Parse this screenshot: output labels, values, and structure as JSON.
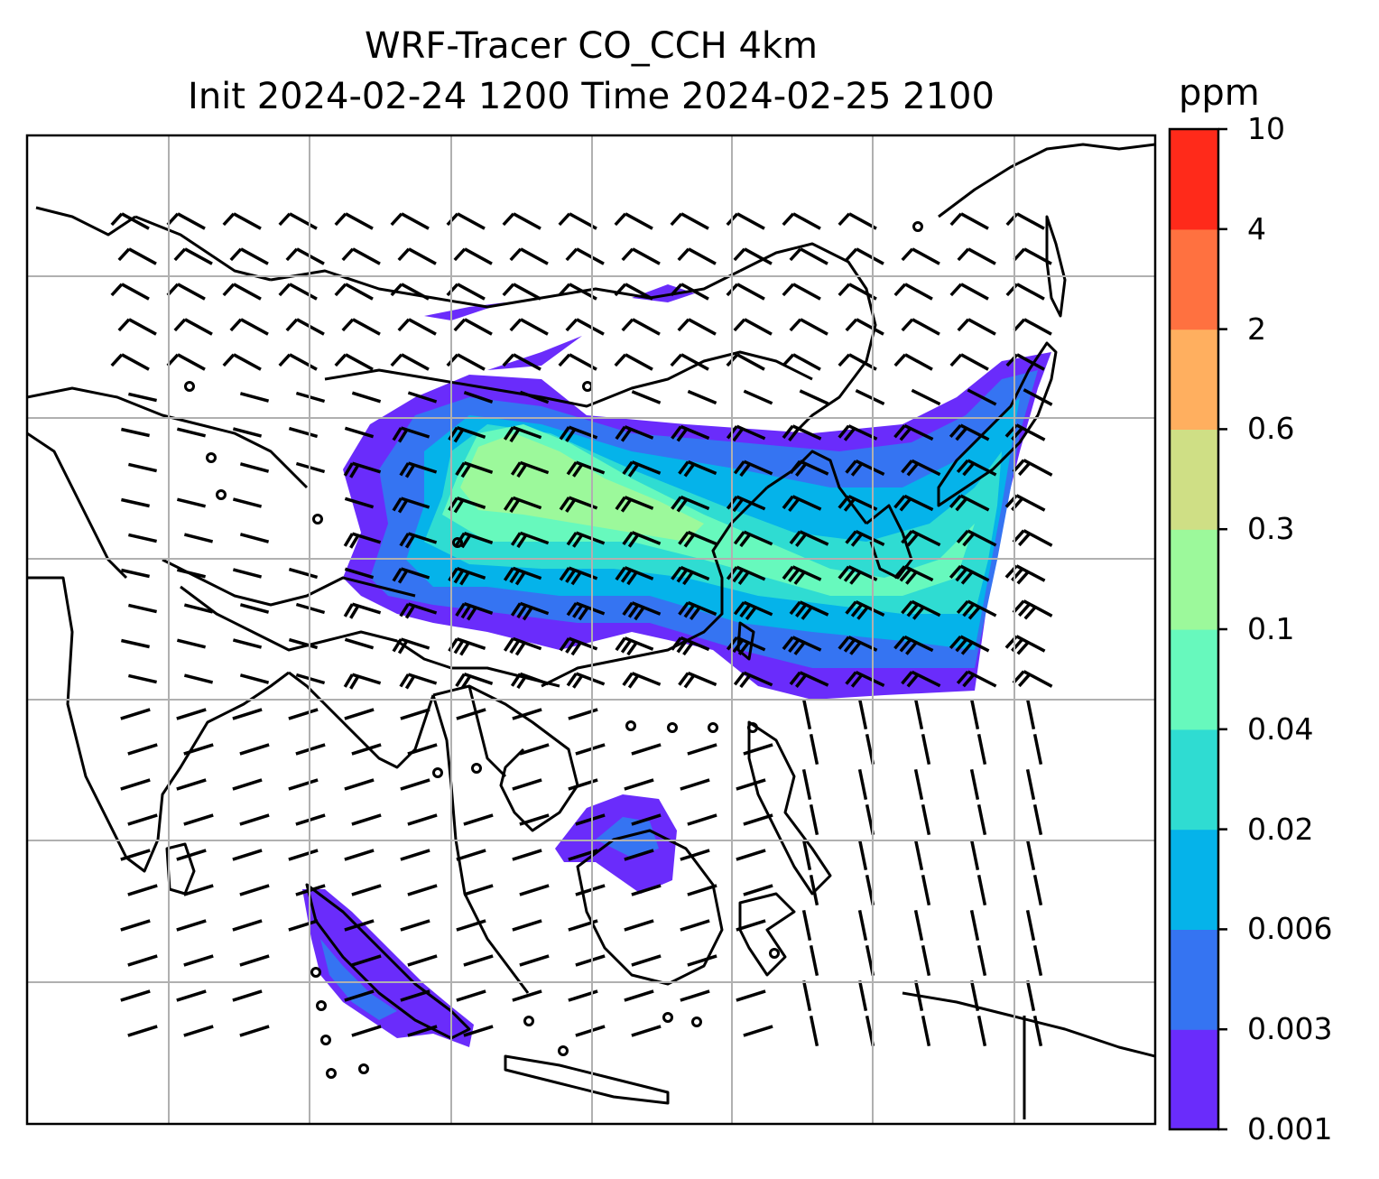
{
  "title": {
    "line1": "WRF-Tracer CO_CCH 4km",
    "line2": "Init 2024-02-24 1200 Time 2024-02-25 2100"
  },
  "colorbar": {
    "units": "ppm",
    "levels": [
      "0.001",
      "0.003",
      "0.006",
      "0.02",
      "0.04",
      "0.1",
      "0.3",
      "0.6",
      "2",
      "4",
      "10"
    ],
    "colors": [
      "#6a2cfb",
      "#3574f2",
      "#05b3ea",
      "#2fdcd2",
      "#67f9bd",
      "#9cf99b",
      "#cfdf85",
      "#ffaf5f",
      "#ff7140",
      "#ff2a1a"
    ]
  },
  "map": {
    "gridlines": "on",
    "overlay": "wind barbs",
    "plume_colors": [
      "#6a2cfb",
      "#3574f2",
      "#05b3ea",
      "#2fdcd2",
      "#67f9bd",
      "#9cf99b"
    ]
  }
}
